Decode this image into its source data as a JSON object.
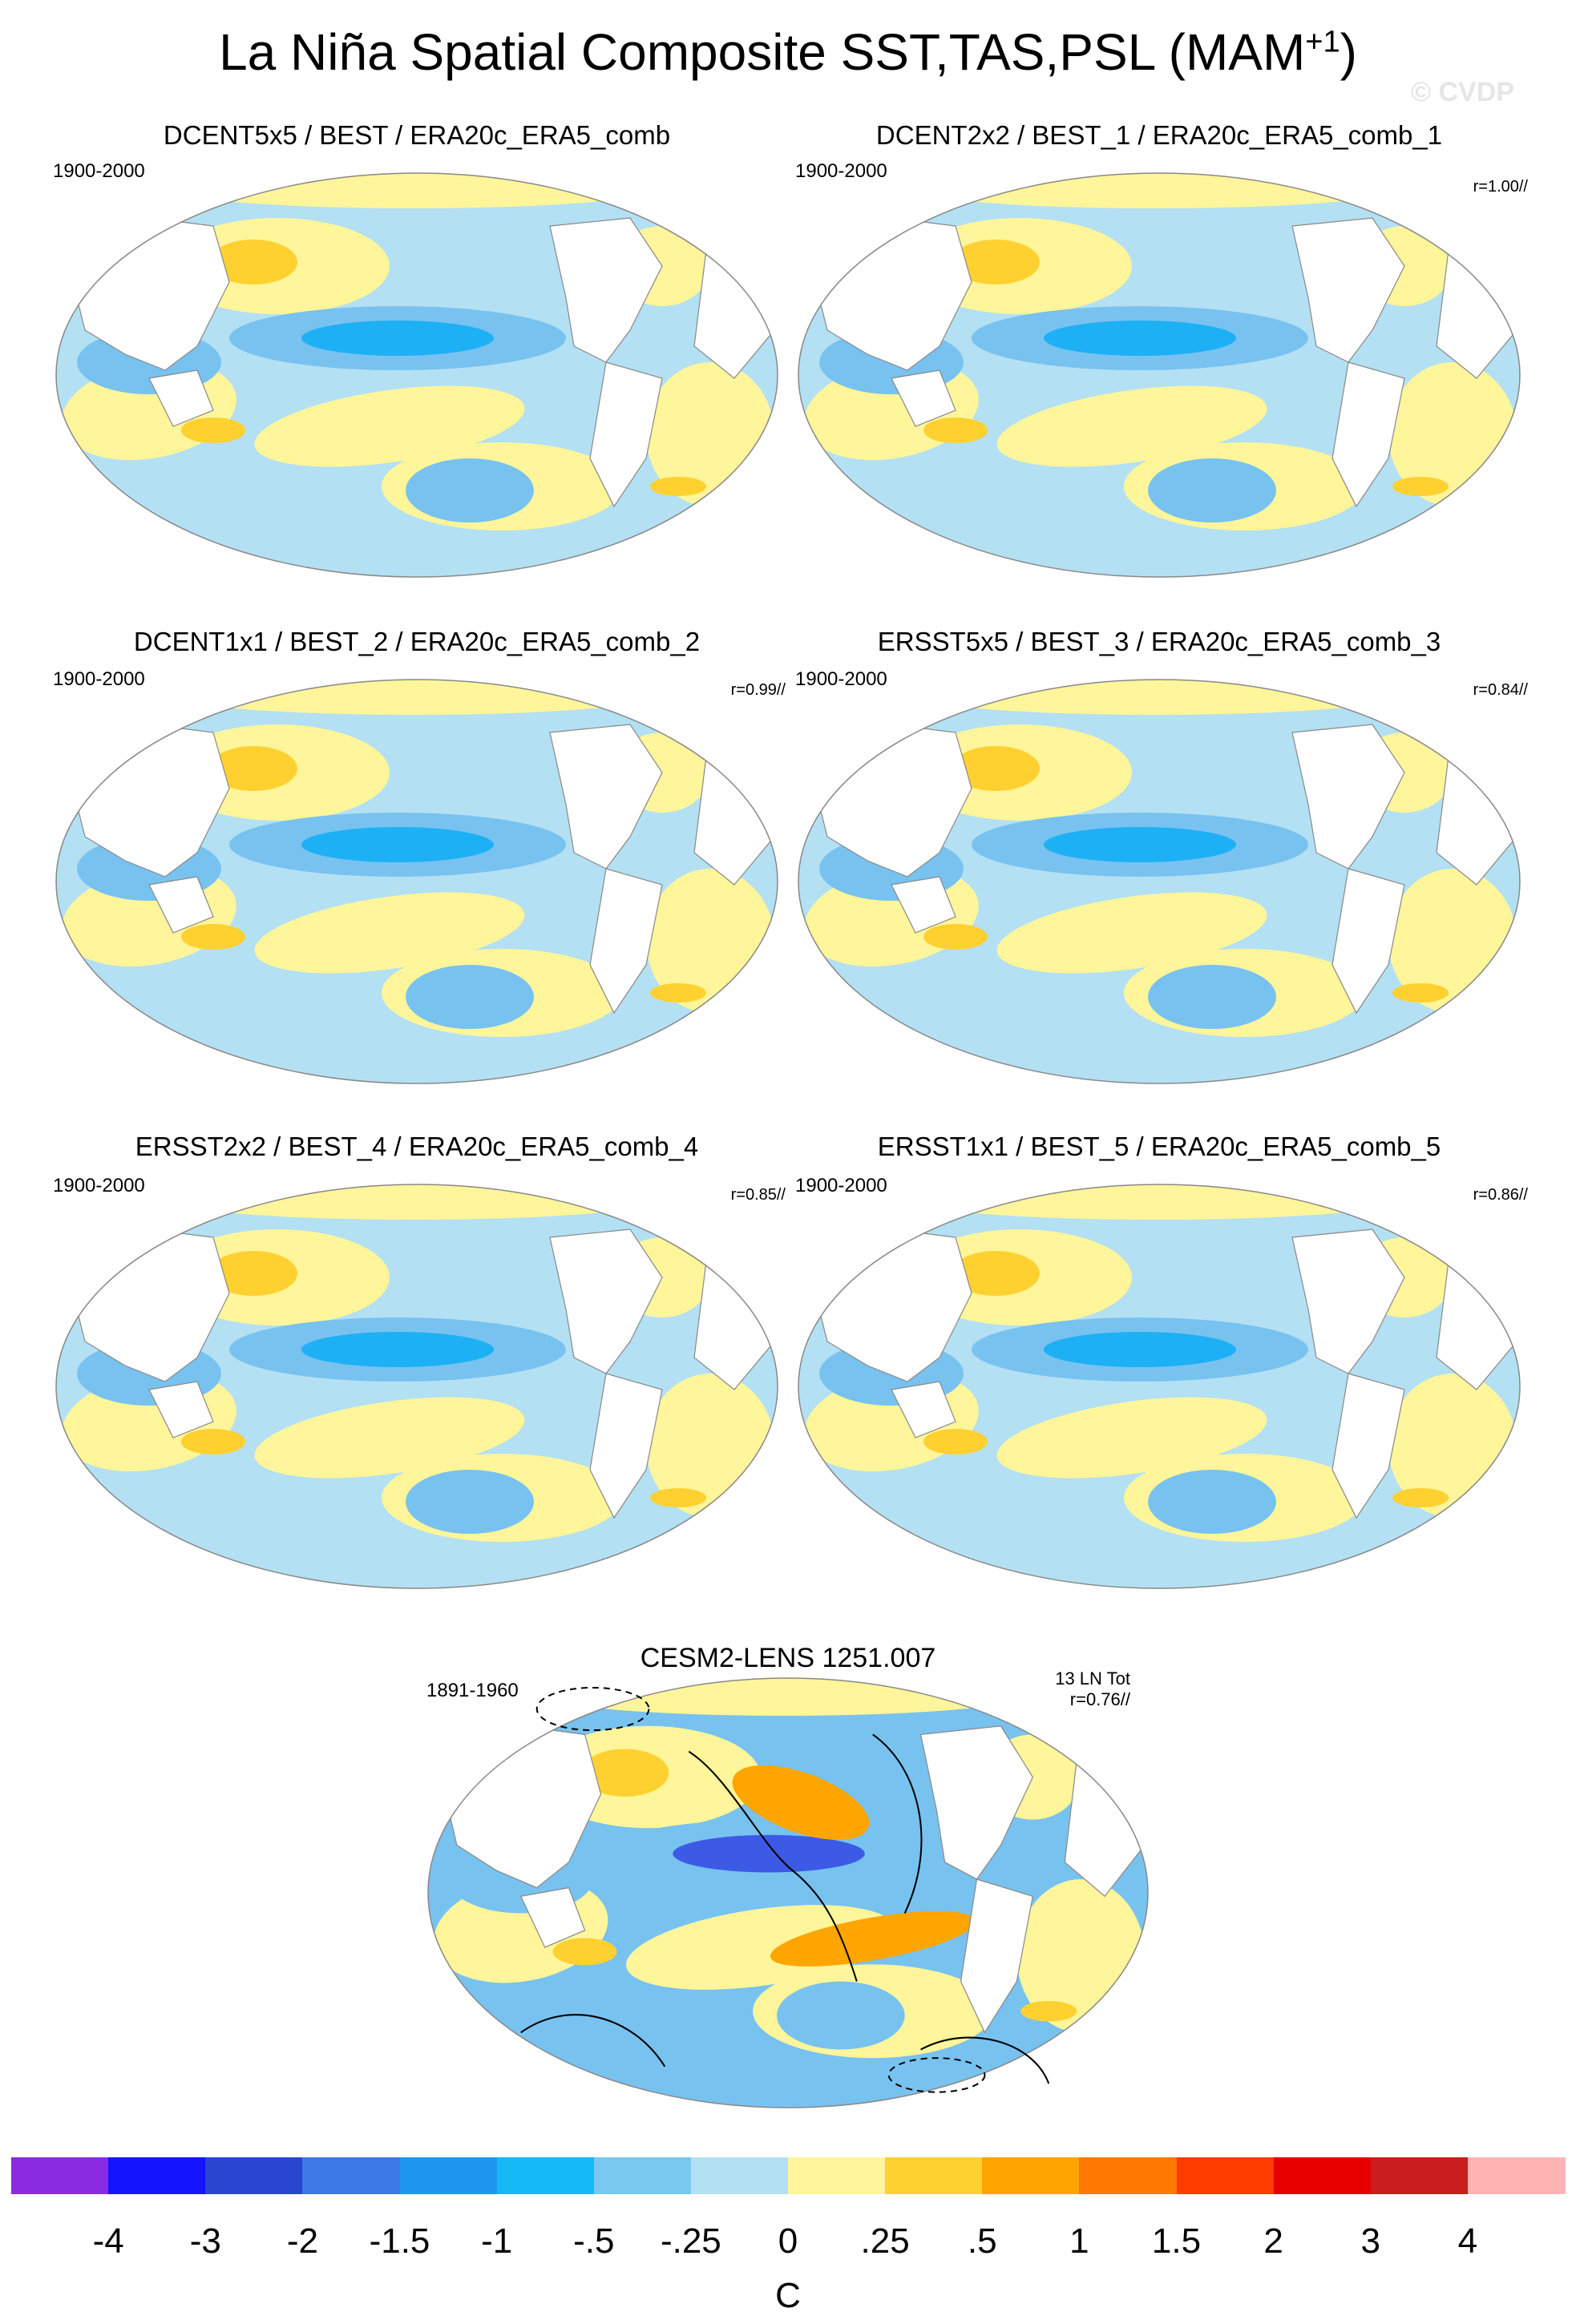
{
  "title_main": "La Niña Spatial Composite SST,TAS,PSL (MAM",
  "title_sup": "+1",
  "title_close": ")",
  "watermark": "© CVDP",
  "colors": {
    "ocean_cool1": "#b4e0f3",
    "ocean_cool2": "#78c2f0",
    "ocean_cool3": "#1eb0f5",
    "ocean_warm1": "#fff59a",
    "ocean_warm2": "#ffd130",
    "ocean_warm3": "#ffa500",
    "land": "#ffffff",
    "outline": "#888888",
    "deep_blue": "#3c5ae6"
  },
  "panels": [
    {
      "title": "DCENT5x5 / BEST / ERA20c_ERA5_comb",
      "years": "1900-2000",
      "r": ""
    },
    {
      "title": "DCENT2x2 / BEST_1 / ERA20c_ERA5_comb_1",
      "years": "1900-2000",
      "r": "r=1.00//"
    },
    {
      "title": "DCENT1x1 / BEST_2 / ERA20c_ERA5_comb_2",
      "years": "1900-2000",
      "r": "r=0.99//"
    },
    {
      "title": "ERSST5x5 / BEST_3 / ERA20c_ERA5_comb_3",
      "years": "1900-2000",
      "r": "r=0.84//"
    },
    {
      "title": "ERSST2x2 / BEST_4 / ERA20c_ERA5_comb_4",
      "years": "1900-2000",
      "r": "r=0.85//"
    },
    {
      "title": "ERSST1x1 / BEST_5 / ERA20c_ERA5_comb_5",
      "years": "1900-2000",
      "r": "r=0.86//"
    }
  ],
  "model_panel": {
    "title": "CESM2-LENS 1251.007",
    "years": "1891-1960",
    "count": "13 LN Tot",
    "r": "r=0.76//"
  },
  "chart_data": {
    "type": "heatmap",
    "title": "La Niña Spatial Composite SST,TAS,PSL (MAM+1)",
    "units": "C",
    "colorbar_levels": [
      "-4",
      "-3",
      "-2",
      "-1.5",
      "-1",
      "-.5",
      "-.25",
      "0",
      ".25",
      ".5",
      "1",
      "1.5",
      "2",
      "3",
      "4"
    ],
    "colorbar_colors": [
      "#8a2be2",
      "#1414ff",
      "#2846d2",
      "#3c78e6",
      "#1e96f0",
      "#14b9f5",
      "#78c8f0",
      "#b4e0f3",
      "#fff59a",
      "#ffd130",
      "#ffa500",
      "#ff7800",
      "#ff3c00",
      "#e60000",
      "#c81e1e",
      "#ffb4b4"
    ]
  }
}
